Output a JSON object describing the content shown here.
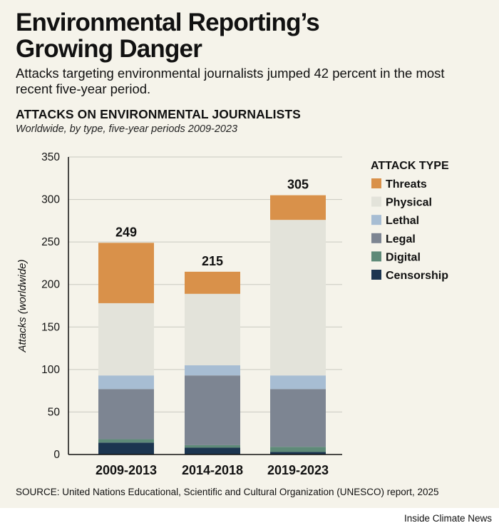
{
  "headline": {
    "line1": "Environmental Reporting’s",
    "line2": "Growing Danger"
  },
  "dek": "Attacks targeting environmental journalists jumped 42 percent in the most recent five-year period.",
  "source": "SOURCE: United Nations Educational, Scientific and Cultural Organization (UNESCO) report, 2025",
  "credit": "Inside Climate News",
  "chart_data": {
    "type": "bar",
    "stacked": true,
    "title": "ATTACKS ON ENVIRONMENTAL JOURNALISTS",
    "subtitle": "Worldwide, by type, five-year periods 2009-2023",
    "ylabel": "Attacks (worldwide)",
    "xlabel": "",
    "ylim": [
      0,
      350
    ],
    "yticks": [
      0,
      50,
      100,
      150,
      200,
      250,
      300,
      350
    ],
    "grid": true,
    "legend_title": "ATTACK TYPE",
    "legend_position": "right",
    "categories": [
      "2009-2013",
      "2014-2018",
      "2019-2023"
    ],
    "totals": [
      249,
      215,
      305
    ],
    "series": [
      {
        "name": "Censorship",
        "color": "#1c3550",
        "values": [
          14,
          8,
          3
        ]
      },
      {
        "name": "Digital",
        "color": "#5e8a78",
        "values": [
          4,
          3,
          6
        ]
      },
      {
        "name": "Legal",
        "color": "#7d8592",
        "values": [
          59,
          82,
          68
        ]
      },
      {
        "name": "Lethal",
        "color": "#a7bdd3",
        "values": [
          16,
          12,
          16
        ]
      },
      {
        "name": "Physical",
        "color": "#e3e3da",
        "values": [
          85,
          84,
          183
        ]
      },
      {
        "name": "Threats",
        "color": "#d9914a",
        "values": [
          71,
          26,
          29
        ]
      }
    ]
  }
}
